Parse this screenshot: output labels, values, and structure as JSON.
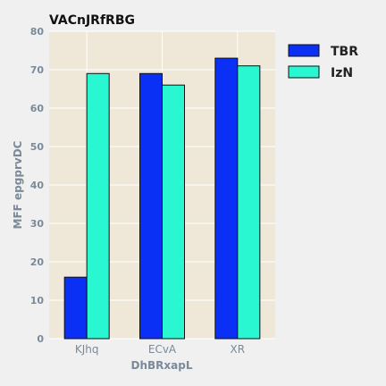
{
  "chart_data": {
    "type": "bar",
    "title": "VACnJRfRBG",
    "xlabel": "DhBRxapL",
    "ylabel": "MFF epgprvDC",
    "categories": [
      "KJhq",
      "ECvA",
      "XR"
    ],
    "series": [
      {
        "name": "TBR",
        "values": [
          16,
          69,
          73
        ],
        "color": "#0a2ff5"
      },
      {
        "name": "IzN",
        "values": [
          69,
          66,
          71
        ],
        "color": "#28f7d2"
      }
    ],
    "ylim": [
      0,
      80
    ],
    "yticks": [
      "0",
      "10",
      "20",
      "30",
      "40",
      "50",
      "60",
      "70",
      "80"
    ],
    "grid": true,
    "legend_position": "right",
    "plot_background": "#efe8d8"
  }
}
